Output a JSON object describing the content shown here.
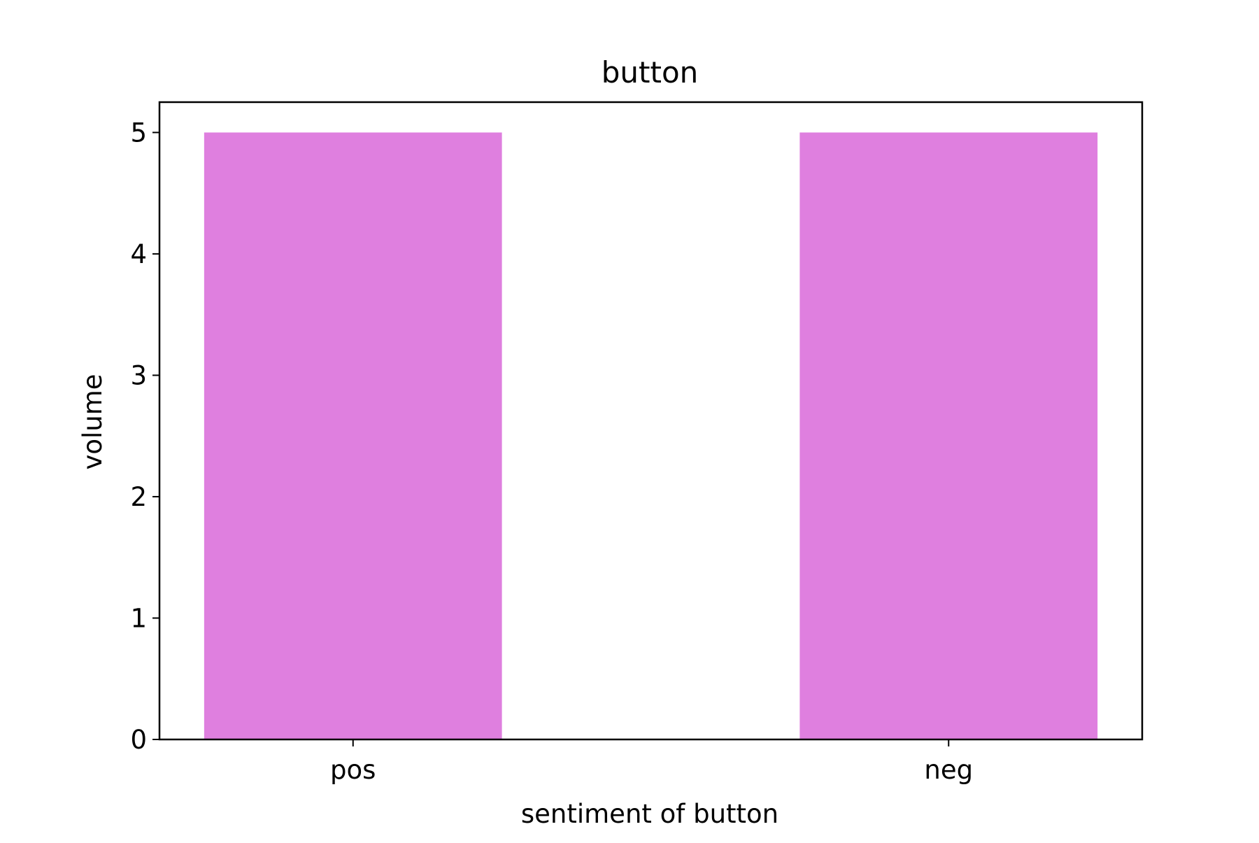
{
  "chart_data": {
    "type": "bar",
    "title": "button",
    "xlabel": "sentiment of button",
    "ylabel": "volume",
    "categories": [
      "pos",
      "neg"
    ],
    "values": [
      5,
      5
    ],
    "ylim": [
      0,
      5.25
    ],
    "yticks": [
      "0",
      "1",
      "2",
      "3",
      "4",
      "5"
    ],
    "grid": false,
    "bar_color": "#df7fdf"
  }
}
